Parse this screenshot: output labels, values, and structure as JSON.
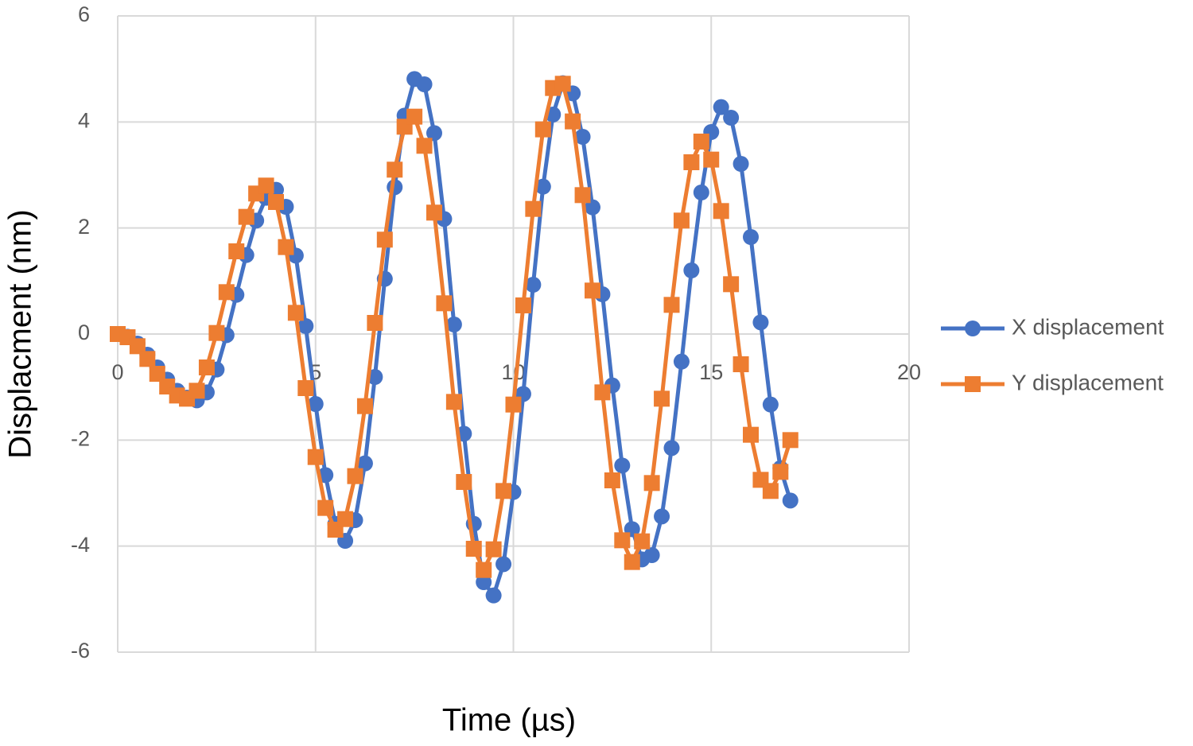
{
  "chart_data": {
    "type": "scatter-line",
    "x_label": "Time (µs)",
    "y_label": "Displacment (nm)",
    "xlim": [
      0,
      20
    ],
    "xticks": [
      0,
      5,
      10,
      15,
      20
    ],
    "ylim": [
      -6,
      6
    ],
    "yticks": [
      -6,
      -4,
      -2,
      0,
      2,
      4,
      6
    ],
    "grid": true,
    "legend": "right",
    "x": [
      0,
      0.25,
      0.5,
      0.75,
      1,
      1.25,
      1.5,
      1.75,
      2,
      2.25,
      2.5,
      2.75,
      3,
      3.25,
      3.5,
      3.75,
      4,
      4.25,
      4.5,
      4.75,
      5,
      5.25,
      5.5,
      5.75,
      6,
      6.25,
      6.5,
      6.75,
      7,
      7.25,
      7.5,
      7.75,
      8,
      8.25,
      8.5,
      8.75,
      9,
      9.25,
      9.5,
      9.75,
      10,
      10.25,
      10.5,
      10.75,
      11,
      11.25,
      11.5,
      11.75,
      12,
      12.25,
      12.5,
      12.75,
      13,
      13.25,
      13.5,
      13.75,
      14,
      14.25,
      14.5,
      14.75,
      15,
      15.25,
      15.5,
      15.75,
      16,
      16.25,
      16.5,
      16.75,
      17
    ],
    "series": [
      {
        "name": "X displacement",
        "color": "#4472c4",
        "marker": "circle",
        "values": [
          0,
          -0.05,
          -0.18,
          -0.39,
          -0.63,
          -0.86,
          -1.07,
          -1.2,
          -1.25,
          -1.1,
          -0.67,
          -0.02,
          0.74,
          1.49,
          2.14,
          2.57,
          2.72,
          2.4,
          1.48,
          0.15,
          -1.32,
          -2.66,
          -3.58,
          -3.9,
          -3.51,
          -2.44,
          -0.81,
          1.04,
          2.77,
          4.12,
          4.81,
          4.71,
          3.79,
          2.17,
          0.18,
          -1.88,
          -3.58,
          -4.68,
          -4.93,
          -4.34,
          -2.98,
          -1.13,
          0.93,
          2.78,
          4.14,
          4.73,
          4.54,
          3.72,
          2.39,
          0.75,
          -0.97,
          -2.48,
          -3.68,
          -4.25,
          -4.17,
          -3.44,
          -2.15,
          -0.52,
          1.2,
          2.67,
          3.81,
          4.28,
          4.08,
          3.21,
          1.83,
          0.22,
          -1.33,
          -2.53,
          -3.14
        ]
      },
      {
        "name": "Y displacement",
        "color": "#ed7d31",
        "marker": "square",
        "values": [
          0,
          -0.06,
          -0.23,
          -0.47,
          -0.75,
          -0.99,
          -1.16,
          -1.22,
          -1.07,
          -0.63,
          0.02,
          0.79,
          1.56,
          2.21,
          2.65,
          2.8,
          2.49,
          1.64,
          0.4,
          -1.02,
          -2.32,
          -3.28,
          -3.69,
          -3.49,
          -2.68,
          -1.36,
          0.21,
          1.78,
          3.1,
          3.91,
          4.1,
          3.55,
          2.29,
          0.58,
          -1.28,
          -2.79,
          -4.05,
          -4.45,
          -4.06,
          -2.96,
          -1.33,
          0.54,
          2.36,
          3.86,
          4.64,
          4.72,
          4.01,
          2.62,
          0.82,
          -1.1,
          -2.76,
          -3.89,
          -4.3,
          -3.91,
          -2.81,
          -1.22,
          0.55,
          2.14,
          3.24,
          3.63,
          3.29,
          2.32,
          0.94,
          -0.57,
          -1.9,
          -2.75,
          -2.96,
          -2.6,
          -2
        ]
      }
    ]
  }
}
